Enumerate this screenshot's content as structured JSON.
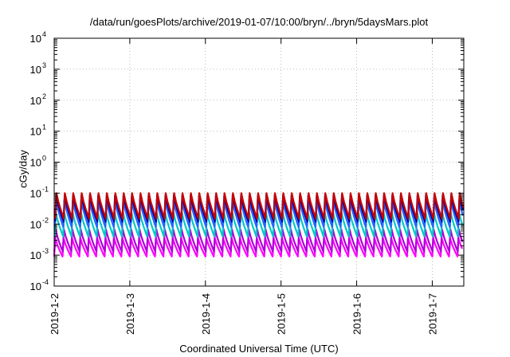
{
  "chart_data": {
    "type": "line",
    "title": "/data/run/goesPlots/archive/2019-01-07/10:00/bryn/../bryn/5daysMars.plot",
    "xlabel": "Coordinated Universal Time (UTC)",
    "ylabel": "cGy/day",
    "y_scale": "log",
    "ylim": [
      0.0001,
      10000
    ],
    "y_ticks": [
      {
        "value": 0.0001,
        "base": "10",
        "exp": "-4"
      },
      {
        "value": 0.001,
        "base": "10",
        "exp": "-3"
      },
      {
        "value": 0.01,
        "base": "10",
        "exp": "-2"
      },
      {
        "value": 0.1,
        "base": "10",
        "exp": "-1"
      },
      {
        "value": 1,
        "base": "10",
        "exp": "0"
      },
      {
        "value": 10,
        "base": "10",
        "exp": "1"
      },
      {
        "value": 100,
        "base": "10",
        "exp": "2"
      },
      {
        "value": 1000,
        "base": "10",
        "exp": "3"
      },
      {
        "value": 10000,
        "base": "10",
        "exp": "4"
      }
    ],
    "xlim": [
      "2019-01-02T00:00",
      "2019-01-07T10:00"
    ],
    "x_ticks": [
      "2019-1-2",
      "2019-1-3",
      "2019-1-4",
      "2019-1-5",
      "2019-1-6",
      "2019-1-7"
    ],
    "grid": true,
    "cycles_per_day": 9,
    "series": [
      {
        "color": "#ff00ff",
        "values": {
          "peak": 0.0035,
          "trough": 0.0009
        }
      },
      {
        "color": "#b000d8",
        "values": {
          "peak": 0.007,
          "trough": 0.0013
        }
      },
      {
        "color": "#00c8c8",
        "values": {
          "peak": 0.025,
          "trough": 0.004
        }
      },
      {
        "color": "#2266ff",
        "values": {
          "peak": 0.06,
          "trough": 0.008
        }
      },
      {
        "color": "#0000aa",
        "values": {
          "peak": 0.085,
          "trough": 0.012
        }
      },
      {
        "color": "#c80000",
        "values": {
          "peak": 0.1,
          "trough": 0.015
        }
      }
    ]
  }
}
